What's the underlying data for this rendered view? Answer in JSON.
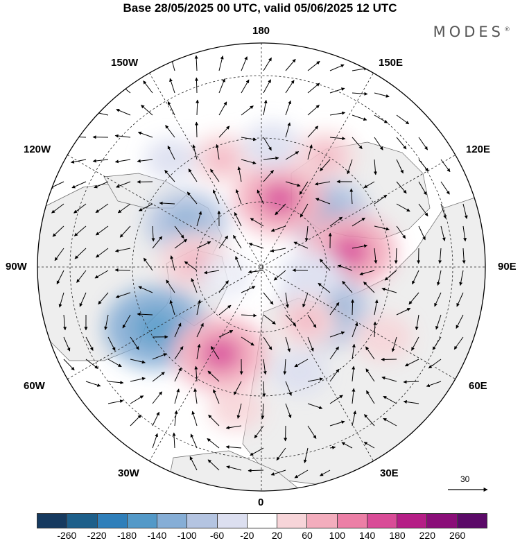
{
  "title": "Base 28/05/2025 00 UTC, valid 05/06/2025 12 UTC",
  "brand": {
    "name": "MODES",
    "mark": "®"
  },
  "map": {
    "projection": "north-polar-stereographic",
    "longitude_labels": {
      "top": "180",
      "bottom": "0",
      "left": "90W",
      "right": "90E",
      "upper_left_1": "150W",
      "upper_left_2": "120W",
      "upper_right_1": "150E",
      "upper_right_2": "120E",
      "lower_left_1": "60W",
      "lower_left_2": "30W",
      "lower_right_1": "60E",
      "lower_right_2": "30E"
    },
    "land_color": "#eeeeee",
    "ocean_color": "#ffffff",
    "wind_reference_label": "30"
  },
  "colorbar": {
    "colors": [
      "#163a5f",
      "#1d5f8a",
      "#2f7fba",
      "#5399c8",
      "#86aed6",
      "#b4c4e1",
      "#dcdff0",
      "#ffffff",
      "#f7d5d9",
      "#f3adbd",
      "#ec7fa6",
      "#d94c97",
      "#b51e86",
      "#8a0e78",
      "#5b0a68"
    ],
    "ticks": [
      "-260",
      "-220",
      "-180",
      "-140",
      "-100",
      "-60",
      "-20",
      "20",
      "60",
      "100",
      "140",
      "180",
      "220",
      "260"
    ]
  },
  "anomalies": [
    {
      "lon": -120,
      "colat": 27,
      "value": -120
    },
    {
      "lon": -95,
      "colat": 21,
      "value": 90
    },
    {
      "lon": -60,
      "colat": 38,
      "value": -180
    },
    {
      "lon": -25,
      "colat": 30,
      "value": 150
    },
    {
      "lon": 130,
      "colat": 26,
      "value": -130
    },
    {
      "lon": 165,
      "colat": 22,
      "value": 140
    },
    {
      "lon": 100,
      "colat": 28,
      "value": 150
    },
    {
      "lon": 55,
      "colat": 24,
      "value": -150
    },
    {
      "lon": 60,
      "colat": 44,
      "value": 50
    },
    {
      "lon": -160,
      "colat": 36,
      "value": 60
    },
    {
      "lon": 175,
      "colat": 38,
      "value": -50
    },
    {
      "lon": 20,
      "colat": 35,
      "value": -40
    },
    {
      "lon": -140,
      "colat": 44,
      "value": -30
    },
    {
      "lon": 80,
      "colat": 16,
      "value": -60
    },
    {
      "lon": 40,
      "colat": 22,
      "value": 60
    },
    {
      "lon": -10,
      "colat": 45,
      "value": 40
    },
    {
      "lon": -75,
      "colat": 12,
      "value": -20
    },
    {
      "lon": 150,
      "colat": 40,
      "value": 60
    }
  ]
}
